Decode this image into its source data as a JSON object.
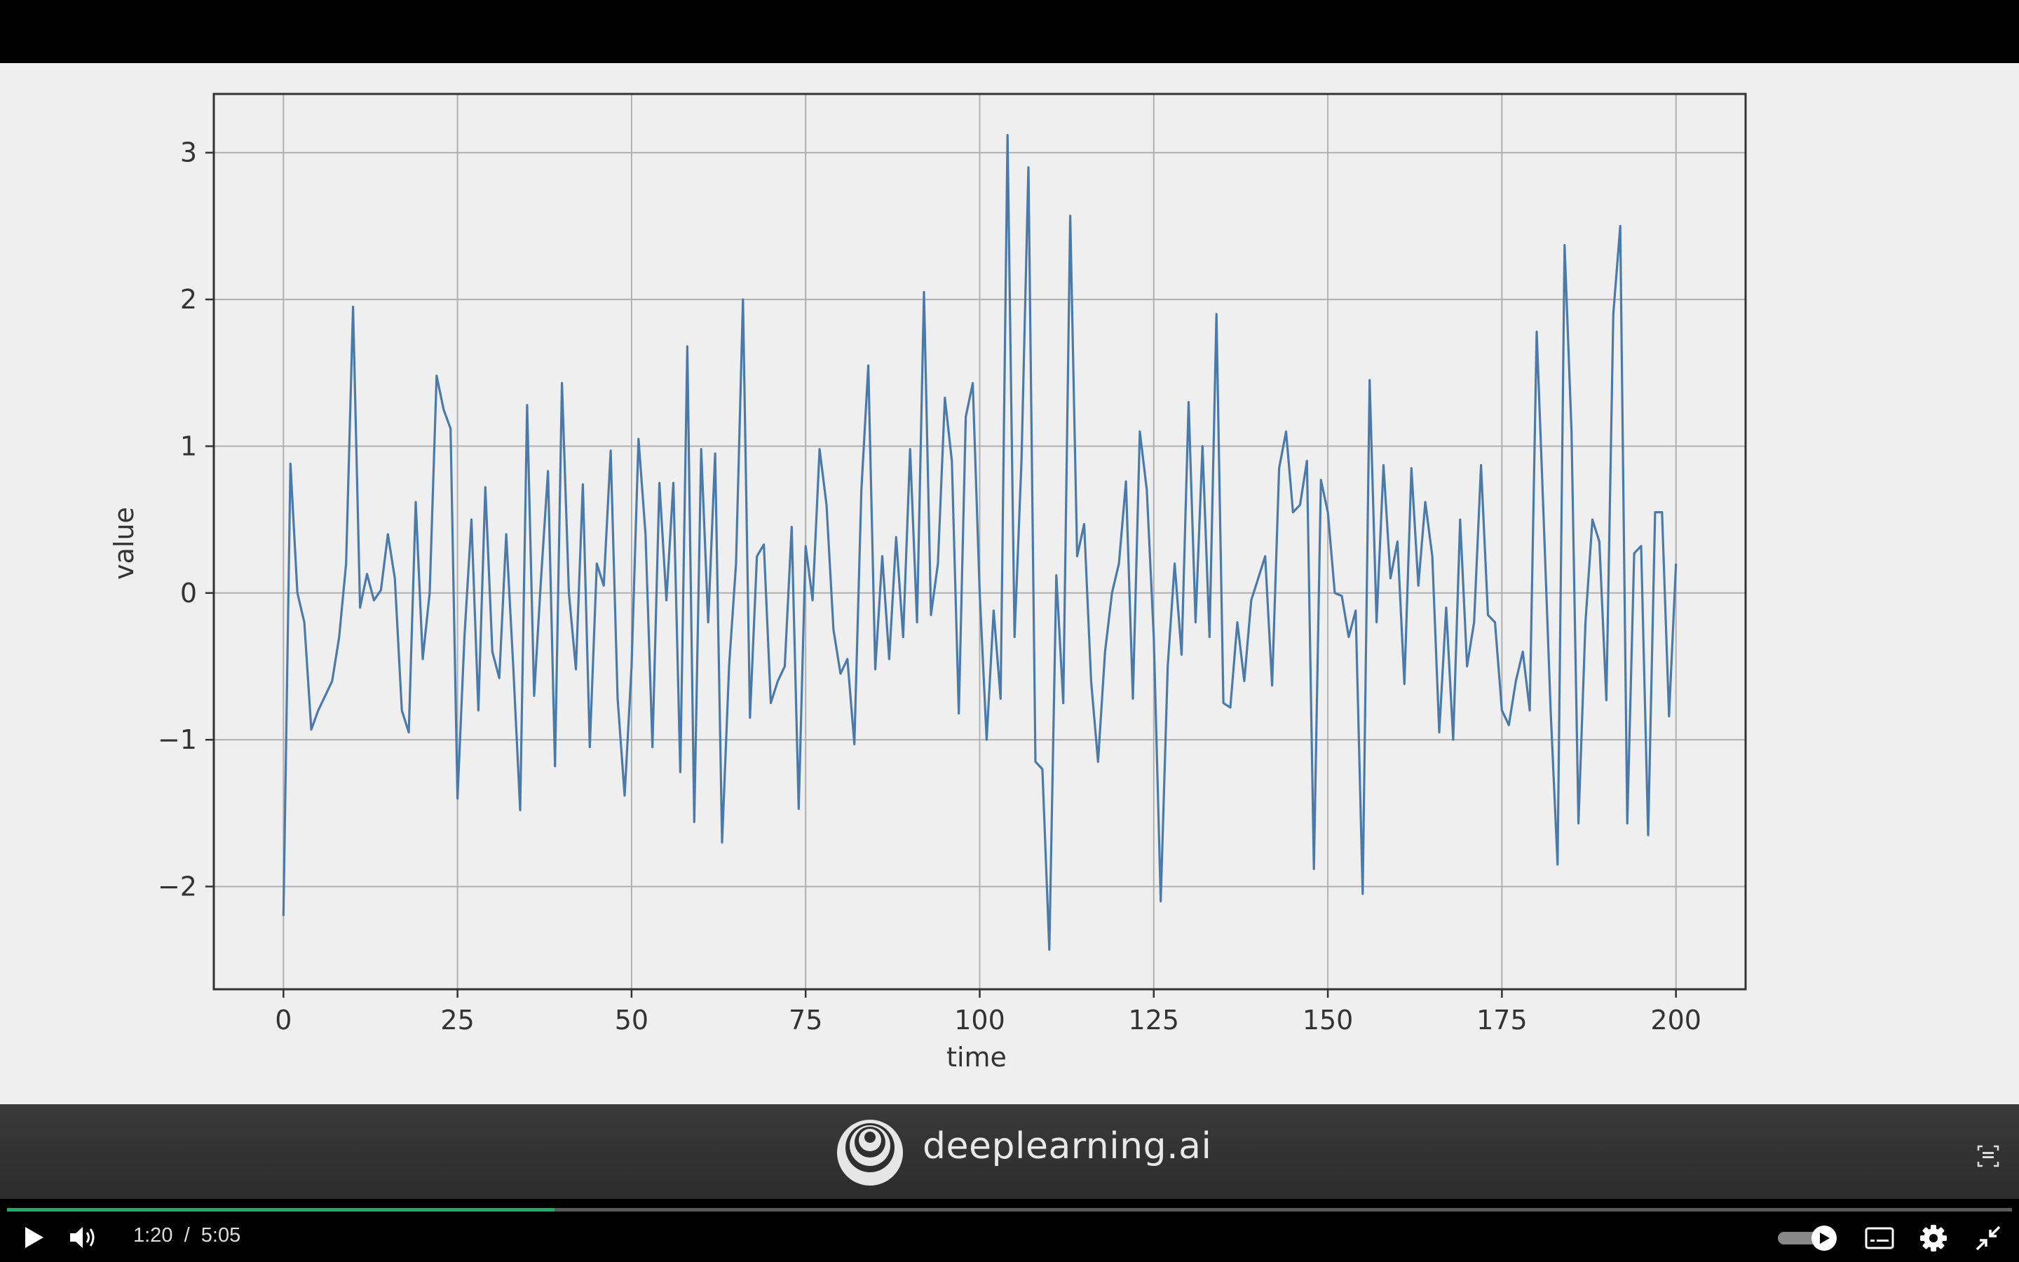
{
  "video": {
    "current_time": "1:20",
    "separator": "/",
    "duration": "5:05",
    "progress_fraction": 0.273,
    "accent_color": "#1fae6e"
  },
  "brand": {
    "text": "deeplearning.ai"
  },
  "icons": {
    "play": "play-icon",
    "volume": "volume-icon",
    "autoplay": "autoplay-toggle-icon",
    "captions": "captions-icon",
    "settings": "gear-icon",
    "exit_fullscreen": "exit-fullscreen-icon",
    "caption_corner": "caption-corner-icon",
    "logo": "deeplearning-logo-icon"
  },
  "chart_data": {
    "type": "line",
    "title": "",
    "xlabel": "time",
    "ylabel": "value",
    "xlim": [
      -10,
      210
    ],
    "ylim": [
      -2.7,
      3.4
    ],
    "xticks": [
      0,
      25,
      50,
      75,
      100,
      125,
      150,
      175,
      200
    ],
    "yticks": [
      -2,
      -1,
      0,
      1,
      2,
      3
    ],
    "xtick_labels": [
      "0",
      "25",
      "50",
      "75",
      "100",
      "125",
      "150",
      "175",
      "200"
    ],
    "ytick_labels": [
      "−2",
      "−1",
      "0",
      "1",
      "2",
      "3"
    ],
    "grid": true,
    "line_color": "#4a7aaa",
    "series": [
      {
        "name": "series",
        "x_start": 0,
        "x_step": 1,
        "values": [
          -2.2,
          0.88,
          0.0,
          -0.2,
          -0.93,
          -0.8,
          -0.7,
          -0.6,
          -0.3,
          0.2,
          1.95,
          -0.1,
          0.13,
          -0.05,
          0.02,
          0.4,
          0.1,
          -0.8,
          -0.95,
          0.62,
          -0.45,
          0.0,
          1.48,
          1.25,
          1.12,
          -1.4,
          -0.3,
          0.5,
          -0.8,
          0.72,
          -0.4,
          -0.58,
          0.4,
          -0.5,
          -1.48,
          1.28,
          -0.7,
          0.1,
          0.83,
          -1.18,
          1.43,
          0.0,
          -0.52,
          0.74,
          -1.05,
          0.2,
          0.05,
          0.97,
          -0.72,
          -1.38,
          -0.5,
          1.05,
          0.4,
          -1.05,
          0.75,
          -0.05,
          0.75,
          -1.22,
          1.68,
          -1.56,
          0.98,
          -0.2,
          0.95,
          -1.7,
          -0.5,
          0.2,
          2.0,
          -0.85,
          0.25,
          0.33,
          -0.75,
          -0.6,
          -0.5,
          0.45,
          -1.47,
          0.32,
          -0.05,
          0.98,
          0.6,
          -0.25,
          -0.55,
          -0.45,
          -1.03,
          0.7,
          1.55,
          -0.52,
          0.25,
          -0.45,
          0.38,
          -0.3,
          0.98,
          -0.2,
          2.05,
          -0.15,
          0.2,
          1.33,
          0.9,
          -0.82,
          1.2,
          1.43,
          0.0,
          -1.0,
          -0.12,
          -0.72,
          3.12,
          -0.3,
          0.9,
          2.9,
          -1.15,
          -1.2,
          -2.43,
          0.12,
          -0.75,
          2.57,
          0.25,
          0.47,
          -0.6,
          -1.15,
          -0.4,
          0.0,
          0.2,
          0.76,
          -0.72,
          1.1,
          0.7,
          -0.3,
          -2.1,
          -0.5,
          0.2,
          -0.42,
          1.3,
          -0.2,
          1.0,
          -0.3,
          1.9,
          -0.75,
          -0.78,
          -0.2,
          -0.6,
          -0.05,
          0.1,
          0.25,
          -0.63,
          0.85,
          1.1,
          0.55,
          0.6,
          0.9,
          -1.88,
          0.77,
          0.55,
          0.0,
          -0.02,
          -0.3,
          -0.12,
          -2.05,
          1.45,
          -0.2,
          0.87,
          0.1,
          0.35,
          -0.62,
          0.85,
          0.05,
          0.62,
          0.25,
          -0.95,
          -0.1,
          -1.0,
          0.5,
          -0.5,
          -0.2,
          0.87,
          -0.15,
          -0.2,
          -0.8,
          -0.9,
          -0.6,
          -0.4,
          -0.8,
          1.78,
          0.5,
          -0.8,
          -1.85,
          2.37,
          1.1,
          -1.57,
          -0.2,
          0.5,
          0.35,
          -0.73,
          1.9,
          2.5,
          -1.57,
          0.27,
          0.32,
          -1.65,
          0.55,
          0.55,
          -0.84,
          0.2
        ]
      }
    ]
  }
}
